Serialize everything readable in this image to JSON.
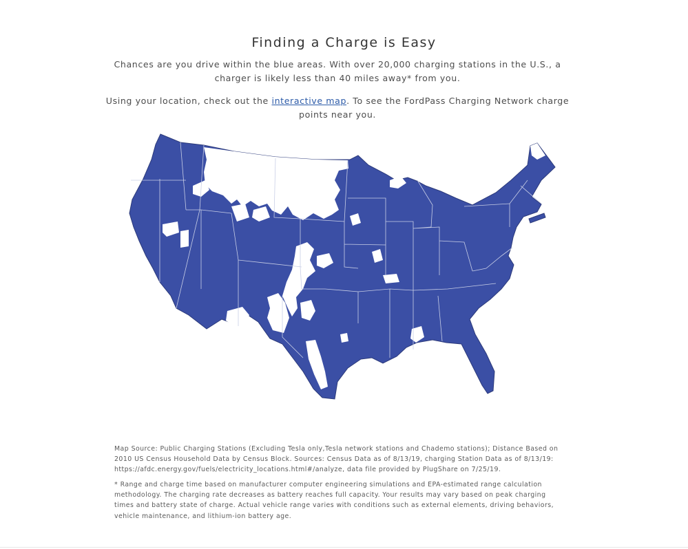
{
  "heading": {
    "title": "Finding a Charge is Easy"
  },
  "intro": {
    "p1": "Chances are you drive within the blue areas. With over 20,000 charging stations in the U.S., a charger is likely less than 40 miles away* from you.",
    "p2_before": "Using your location, check out the ",
    "p2_link": "interactive map",
    "p2_after": ". To see the FordPass Charging Network charge points near you."
  },
  "map": {
    "coverage_color": "#3b4fa5",
    "gap_color": "#ffffff",
    "border_color": "#c9cfe6"
  },
  "footnotes": {
    "source": "Map Source: Public Charging Stations (Excluding Tesla only,Tesla network stations and Chademo stations); Distance Based on 2010 US Census Household Data by Census Block. Sources: Census Data as of 8/13/19, charging Station Data as of 8/13/19: https://afdc.energy.gov/fuels/electricity_locations.html#/analyze, data file provided by PlugShare on 7/25/19.",
    "range": "* Range and charge time based on manufacturer computer engineering simulations and EPA-estimated range calculation methodology. The charging rate decreases as battery reaches full capacity. Your results may vary based on peak charging times and battery state of charge. Actual vehicle range varies with conditions such as external elements, driving behaviors, vehicle maintenance, and lithium-ion battery age."
  }
}
